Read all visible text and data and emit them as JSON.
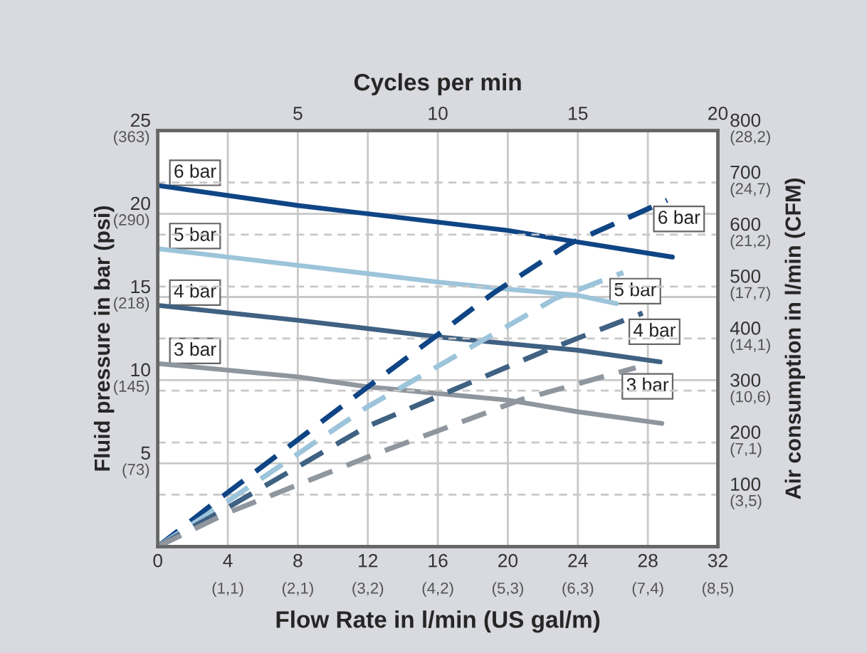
{
  "chart_data": {
    "type": "line",
    "xlabel": "Flow Rate in l/min (US gal/m)",
    "ylabel": "Fluid pressure in bar (psi)",
    "y2label": "Air consumption in l/min (CFM)",
    "x2label": "Cycles per min",
    "xlim": [
      0,
      32
    ],
    "xticks": [
      0,
      4,
      8,
      12,
      16,
      20,
      24,
      28,
      32
    ],
    "annotations": [
      "(1,1)",
      "(2,1)",
      "(3,2)",
      "(4,2)",
      "(5,3)",
      "(6,3)",
      "(7,4)",
      "(8,5)",
      "(3,5)",
      "(7,1)",
      "(10,6)",
      "(14,1)",
      "(17,7)",
      "(21,2)",
      "(24,7)",
      "(28,2)"
    ],
    "x2lim": [
      0,
      20
    ],
    "x2ticks": [
      5,
      10,
      15,
      20
    ],
    "ylim": [
      0,
      25
    ],
    "yticks": [
      5,
      10,
      15,
      20,
      25
    ],
    "y3lim": [
      0,
      362.6
    ],
    "y3ticks": [
      {
        "value": 72.5,
        "label": "(73)"
      },
      {
        "value": 145,
        "label": "(145)"
      },
      {
        "value": 217.6,
        "label": "(218)"
      },
      {
        "value": 290.1,
        "label": "(290)"
      },
      {
        "value": 362.6,
        "label": "(363)"
      }
    ],
    "y2lim": [
      0,
      800
    ],
    "y2ticks": [
      100,
      200,
      300,
      400,
      500,
      600,
      700,
      800
    ],
    "grid": true,
    "marker": "none",
    "series": [
      {
        "name": "6 bar",
        "color": "#0f4585",
        "line_style": "solid",
        "x": [
          0,
          8,
          12,
          16,
          20,
          24,
          29.4
        ],
        "values": [
          21.7,
          20.5,
          20.0,
          19.5,
          19.0,
          18.3,
          17.4
        ]
      },
      {
        "name": "5 bar",
        "color": "#9cc4da",
        "line_style": "solid",
        "x": [
          0,
          8,
          16,
          19.7,
          24,
          26.2
        ],
        "values": [
          17.9,
          16.9,
          15.9,
          15.5,
          15.1,
          14.6
        ]
      },
      {
        "name": "4 bar",
        "color": "#3f6182",
        "line_style": "solid",
        "x": [
          0,
          8,
          16,
          20,
          24,
          28.7
        ],
        "values": [
          14.5,
          13.6,
          12.6,
          12.2,
          11.8,
          11.1
        ]
      },
      {
        "name": "3 bar",
        "color": "#8f969e",
        "line_style": "solid",
        "x": [
          0,
          8,
          12,
          16,
          20,
          24,
          28.8
        ],
        "values": [
          11.0,
          10.2,
          9.6,
          9.2,
          8.8,
          8.1,
          7.4
        ]
      },
      {
        "name": "6 bar",
        "color": "#0f4585",
        "line_style": "dashed",
        "axis": "y2",
        "x": [
          0,
          3.8,
          12,
          19.2,
          23.5,
          29.1
        ],
        "values": [
          0,
          99,
          307,
          488,
          582,
          666
        ]
      },
      {
        "name": "5 bar",
        "color": "#9cc4da",
        "line_style": "dashed",
        "axis": "y2",
        "x": [
          0,
          3.9,
          11.9,
          22.7,
          26.6
        ],
        "values": [
          0,
          85,
          267,
          477,
          527
        ]
      },
      {
        "name": "4 bar",
        "color": "#3f6182",
        "line_style": "dashed",
        "axis": "y2",
        "x": [
          0,
          4,
          11.9,
          22.1,
          27.7
        ],
        "values": [
          0,
          75,
          230,
          376,
          449
        ]
      },
      {
        "name": "3 bar",
        "color": "#8f969e",
        "line_style": "dashed",
        "axis": "y2",
        "x": [
          0,
          4,
          11.9,
          20.8,
          27.3
        ],
        "values": [
          0,
          65,
          171,
          283,
          344
        ]
      }
    ]
  }
}
